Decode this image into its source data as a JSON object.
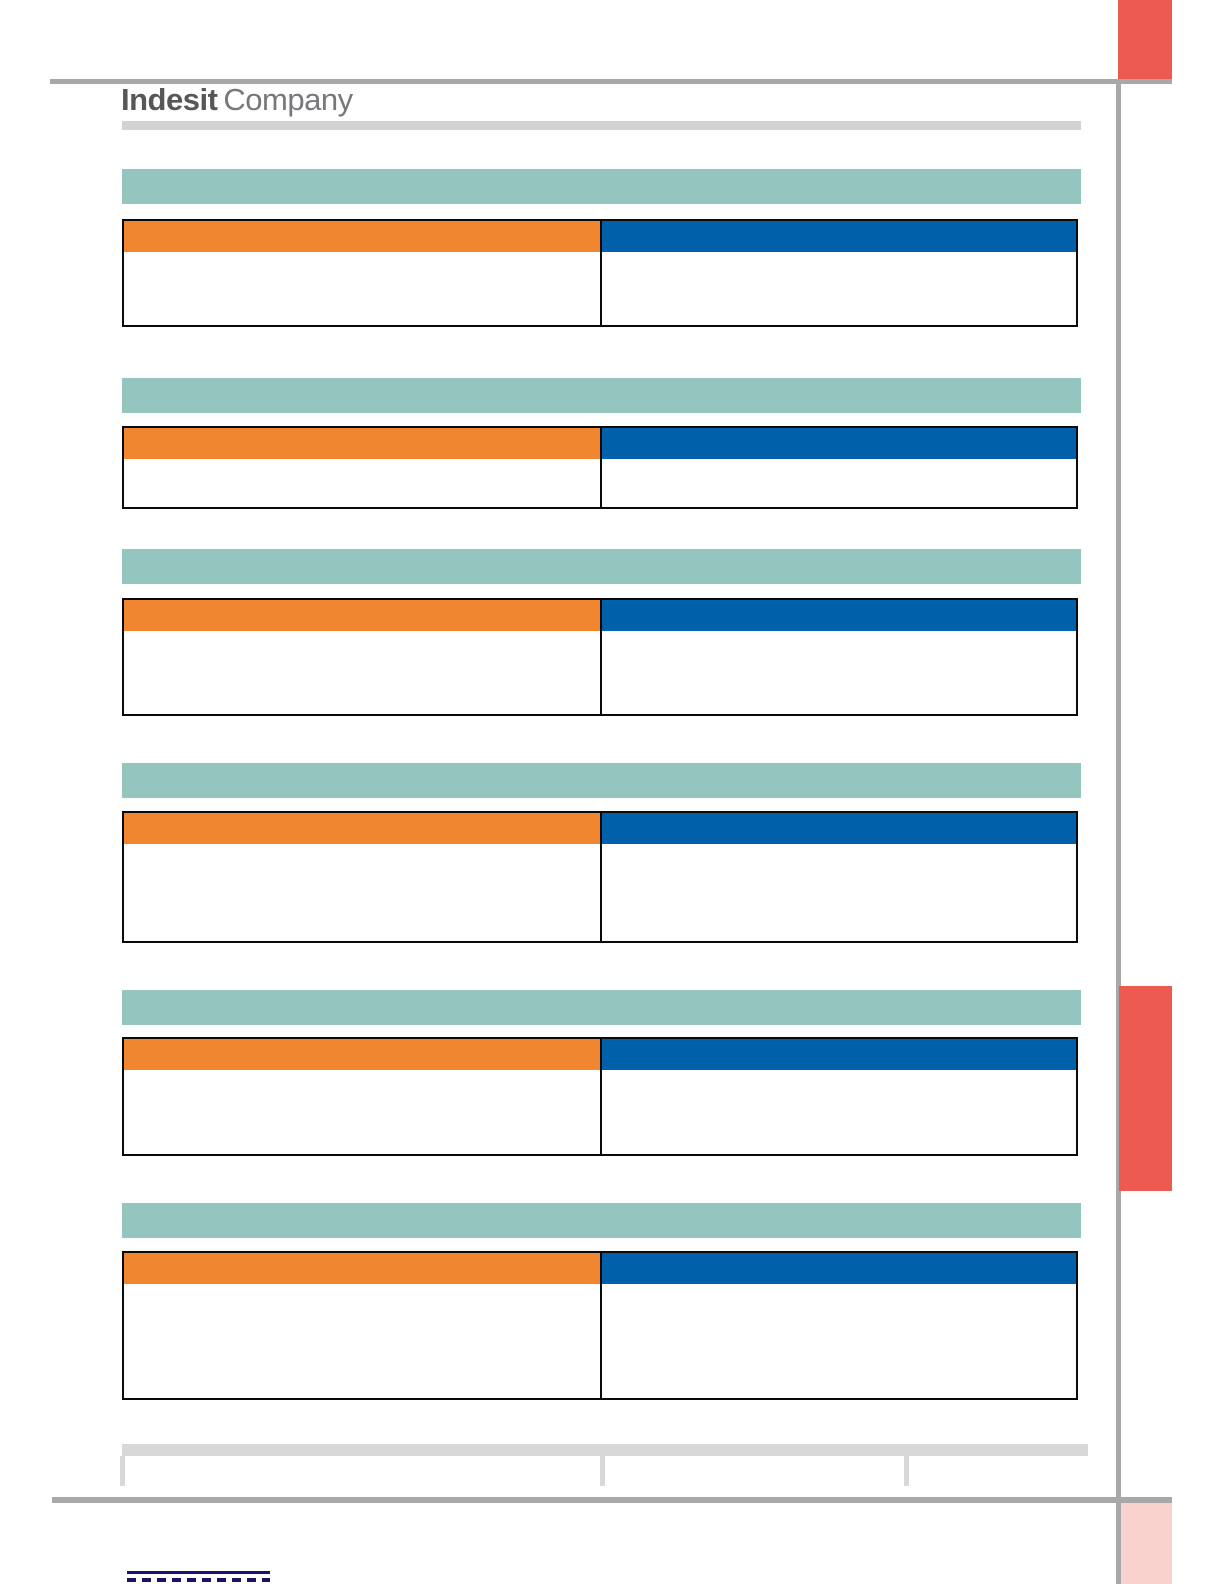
{
  "page": {
    "logo": {
      "brand": "Indesit",
      "suffix": "Company"
    }
  },
  "colors": {
    "teal": "#95c5bf",
    "orange": "#f18631",
    "blue": "#0061aa",
    "accent_red": "#ed5a51",
    "accent_pink": "#f9d1cd",
    "rule_gray": "#a8a8a8",
    "logo_bar_gray": "#d2d2d2",
    "footer_header_gray": "#d8d8d8",
    "logo_dark_gray": "#57575a",
    "logo_light_gray": "#77787b",
    "link_navy": "#1b1464",
    "table_border": "#0a0a0a"
  },
  "sections": {
    "count": 6,
    "header_label": "",
    "left_column_label": "",
    "right_column_label": ""
  },
  "footer_table": {
    "column_count": 3,
    "header_label": ""
  },
  "footer_link": {
    "label": ""
  }
}
